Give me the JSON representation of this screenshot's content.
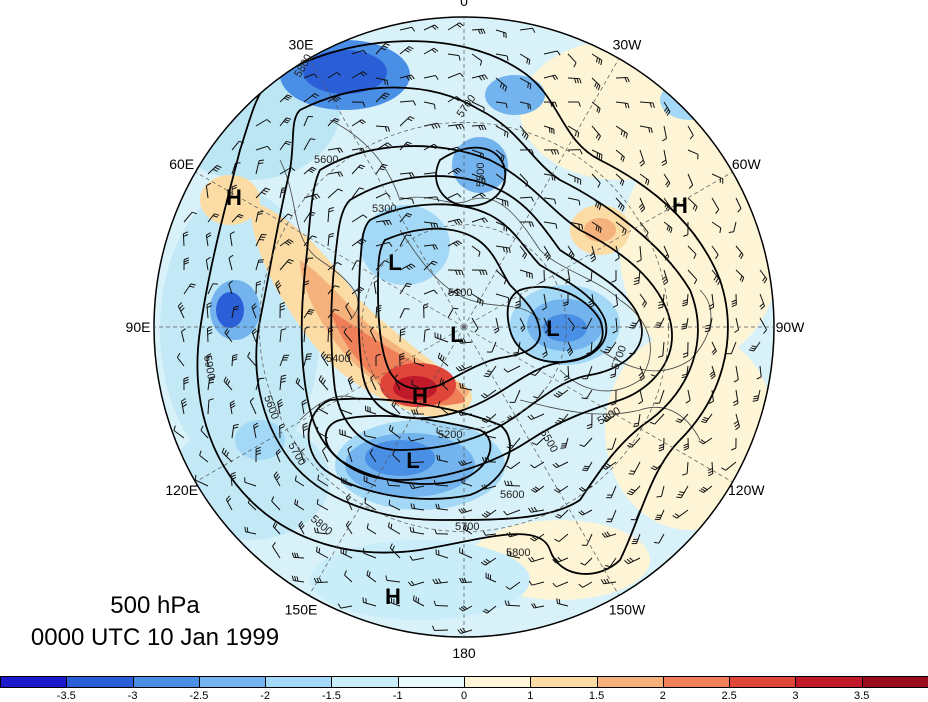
{
  "title": {
    "level": "500 hPa",
    "time": "0000 UTC 10 Jan 1999"
  },
  "longitude_labels": [
    {
      "text": "0",
      "angle": 0
    },
    {
      "text": "30W",
      "angle": 30
    },
    {
      "text": "60W",
      "angle": 60
    },
    {
      "text": "90W",
      "angle": 90
    },
    {
      "text": "120W",
      "angle": 120
    },
    {
      "text": "150W",
      "angle": 150
    },
    {
      "text": "180",
      "angle": 180
    },
    {
      "text": "150E",
      "angle": 210
    },
    {
      "text": "120E",
      "angle": 240
    },
    {
      "text": "90E",
      "angle": 270
    },
    {
      "text": "60E",
      "angle": 300
    },
    {
      "text": "30E",
      "angle": 330
    }
  ],
  "pressure_centers": [
    {
      "label": "H"
    },
    {
      "label": "H"
    },
    {
      "label": "H"
    },
    {
      "label": "H"
    },
    {
      "label": "L"
    },
    {
      "label": "L"
    },
    {
      "label": "L"
    },
    {
      "label": "L"
    }
  ],
  "contour_labels": [
    "5800",
    "5700",
    "5600",
    "5500",
    "5300",
    "5100",
    "5400",
    "5200",
    "5600",
    "5700",
    "5800",
    "5600",
    "5500",
    "5700",
    "5800",
    "5900",
    "5800",
    "5700"
  ],
  "colorbar": {
    "ticks": [
      "-3.5",
      "-3",
      "-2.5",
      "-2",
      "-1.5",
      "-1",
      "0",
      "1",
      "1.5",
      "2",
      "2.5",
      "3",
      "3.5"
    ],
    "colors": [
      "#1a1acc",
      "#2a5fd8",
      "#4a8fe6",
      "#73b4ef",
      "#a3d9f6",
      "#c9eefa",
      "#e8f8fb",
      "#fdf5d6",
      "#fbdca5",
      "#f6b27c",
      "#ef7f58",
      "#e0453a",
      "#c0192a",
      "#9a0d1d"
    ]
  },
  "colors": {
    "ring": "#000000",
    "contour": "#000000",
    "coast": "#444444",
    "barb": "#111111"
  }
}
